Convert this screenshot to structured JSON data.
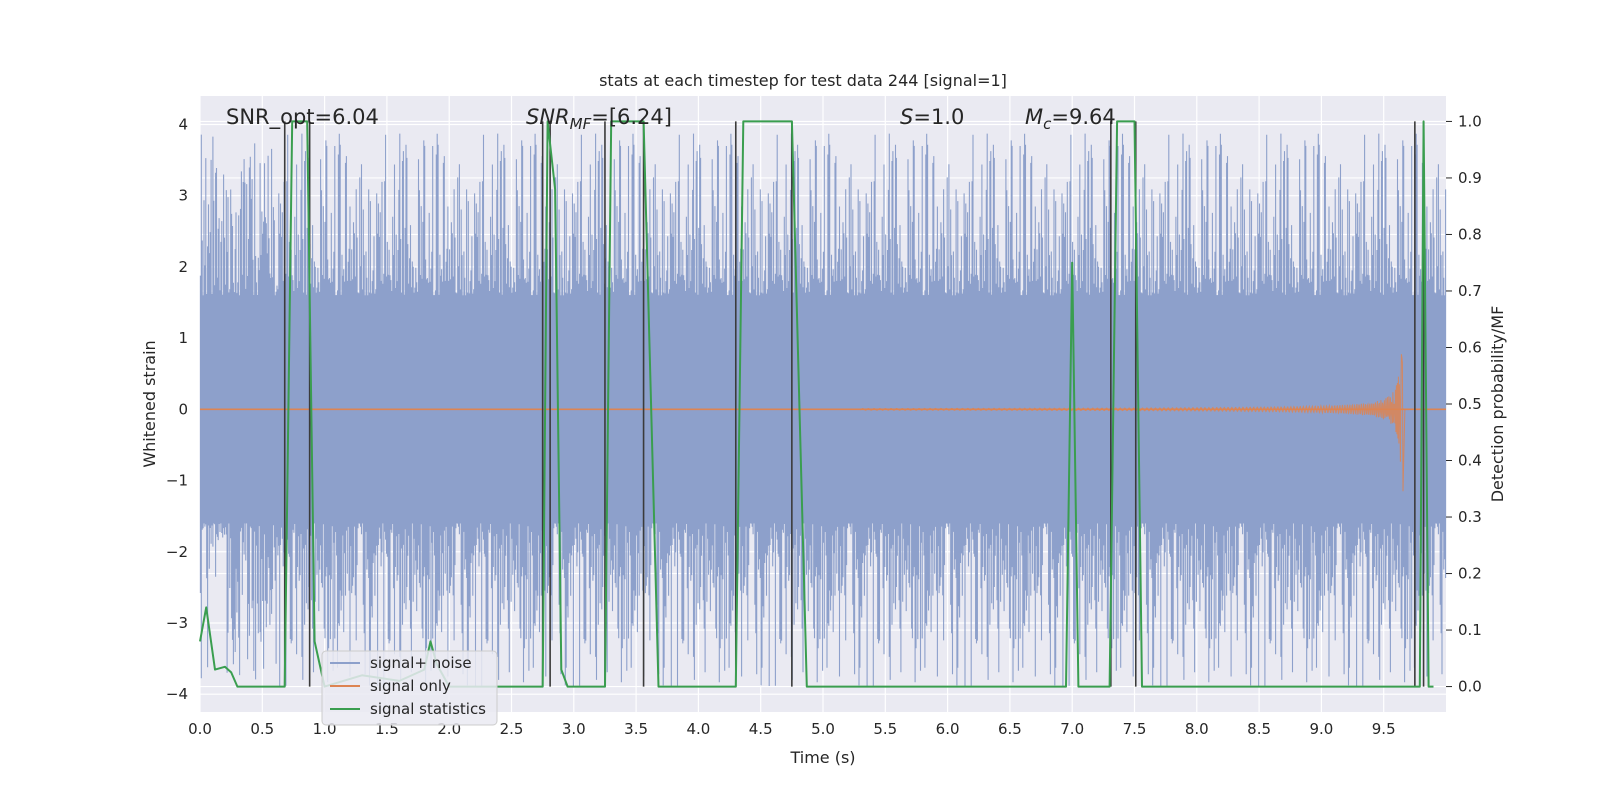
{
  "chart_data": {
    "type": "line",
    "title": "stats at each timestep for test data 244 [signal=1]",
    "xlabel": "Time (s)",
    "ylabel": "Whitened strain",
    "y2label": "Detection probability/MF",
    "xlim": [
      0.0,
      10.0
    ],
    "ylim": [
      -4.25,
      4.4
    ],
    "y2lim": [
      -0.045,
      1.045
    ],
    "xticks": [
      "0.0",
      "0.5",
      "1.0",
      "1.5",
      "2.0",
      "2.5",
      "3.0",
      "3.5",
      "4.0",
      "4.5",
      "5.0",
      "5.5",
      "6.0",
      "6.5",
      "7.0",
      "7.5",
      "8.0",
      "8.5",
      "9.0",
      "9.5"
    ],
    "xtick_values": [
      0.0,
      0.5,
      1.0,
      1.5,
      2.0,
      2.5,
      3.0,
      3.5,
      4.0,
      4.5,
      5.0,
      5.5,
      6.0,
      6.5,
      7.0,
      7.5,
      8.0,
      8.5,
      9.0,
      9.5
    ],
    "yticks": [
      "4",
      "3",
      "2",
      "1",
      "0",
      "−1",
      "−2",
      "−3",
      "−4"
    ],
    "ytick_values": [
      4,
      3,
      2,
      1,
      0,
      -1,
      -2,
      -3,
      -4
    ],
    "y2ticks": [
      "1.0",
      "0.9",
      "0.8",
      "0.7",
      "0.6",
      "0.5",
      "0.4",
      "0.3",
      "0.2",
      "0.1",
      "0.0"
    ],
    "y2tick_values": [
      1.0,
      0.9,
      0.8,
      0.7,
      0.6,
      0.5,
      0.4,
      0.3,
      0.2,
      0.1,
      0.0
    ],
    "grid": true,
    "legend_placement": "lower-left",
    "colors": {
      "background": "#eaeaf2",
      "grid": "#ffffff",
      "noise": "#8da0cb",
      "signal": "#dd8452",
      "stats": "#3a9e4f",
      "vlines": "#3b3b3b"
    },
    "annotations": {
      "snr_opt": "SNR_opt=6.04",
      "snr_mf_base": "SNR",
      "snr_mf_sub": "MF",
      "snr_mf_value": "=[6.24]",
      "s_symbol": "S",
      "s_value": "=1.0",
      "mc_symbol": "M",
      "mc_sub": "c",
      "mc_value": "=9.64"
    },
    "series": [
      {
        "name": "signal+ noise",
        "kind": "noise-band",
        "core_amplitude": 1.6,
        "peak_amplitude": 3.7
      },
      {
        "name": "signal only",
        "kind": "chirp",
        "start_time": 5.3,
        "merger_time": 9.65,
        "peak_amplitude": 0.8,
        "min_amplitude": -1.15
      },
      {
        "name": "signal statistics",
        "kind": "probability",
        "x": [
          0.0,
          0.05,
          0.12,
          0.2,
          0.25,
          0.3,
          0.68,
          0.74,
          0.86,
          0.92,
          1.0,
          1.3,
          1.6,
          1.8,
          1.85,
          1.9,
          2.0,
          2.75,
          2.79,
          2.85,
          2.9,
          2.95,
          3.25,
          3.3,
          3.56,
          3.68,
          4.0,
          4.3,
          4.36,
          4.75,
          4.87,
          5.5,
          6.95,
          7.0,
          7.05,
          7.3,
          7.36,
          7.5,
          7.56,
          9.75,
          9.79,
          9.82,
          9.86,
          9.9
        ],
        "y": [
          0.08,
          0.14,
          0.03,
          0.035,
          0.025,
          0.0,
          0.0,
          1.0,
          1.0,
          0.08,
          0.0,
          0.02,
          0.01,
          0.03,
          0.08,
          0.04,
          0.0,
          0.0,
          1.0,
          0.88,
          0.03,
          0.0,
          0.0,
          1.0,
          1.0,
          0.0,
          0.0,
          0.0,
          1.0,
          1.0,
          0.0,
          0.0,
          0.0,
          0.75,
          0.0,
          0.0,
          1.0,
          1.0,
          0.0,
          0.0,
          0.0,
          1.0,
          0.0,
          0.0
        ]
      }
    ],
    "vertical_lines_x": [
      0.68,
      0.88,
      2.75,
      2.81,
      3.25,
      3.56,
      4.3,
      4.75,
      7.31,
      7.51,
      9.75,
      9.82
    ]
  }
}
